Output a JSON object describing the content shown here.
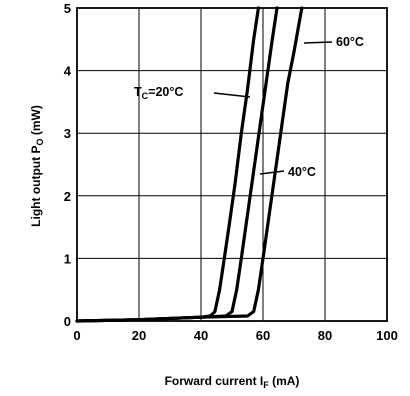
{
  "chart_data": {
    "type": "line",
    "title": "",
    "xlabel": "Forward current I",
    "xlabel_sub": "F",
    "xlabel_unit": " (mA)",
    "ylabel": "Light output P",
    "ylabel_sub": "O",
    "ylabel_unit": " (mW)",
    "xlim": [
      0,
      100
    ],
    "ylim": [
      0,
      5
    ],
    "x_ticks": [
      0,
      20,
      40,
      60,
      80,
      100
    ],
    "y_ticks": [
      0,
      1,
      2,
      3,
      4,
      5
    ],
    "grid": true,
    "legend": "none",
    "line_color": "#000000",
    "series": [
      {
        "name": "TC=20°C",
        "points": [
          [
            0,
            0.0
          ],
          [
            20,
            0.02
          ],
          [
            40,
            0.06
          ],
          [
            43,
            0.08
          ],
          [
            44.5,
            0.15
          ],
          [
            46,
            0.5
          ],
          [
            47.5,
            1.0
          ],
          [
            49,
            1.5
          ],
          [
            51,
            2.2
          ],
          [
            53,
            3.0
          ],
          [
            55,
            3.7
          ],
          [
            57,
            4.5
          ],
          [
            58.5,
            5.0
          ]
        ]
      },
      {
        "name": "40°C",
        "points": [
          [
            0,
            0.0
          ],
          [
            20,
            0.02
          ],
          [
            40,
            0.06
          ],
          [
            48,
            0.08
          ],
          [
            50,
            0.15
          ],
          [
            51.5,
            0.5
          ],
          [
            53,
            1.0
          ],
          [
            55,
            1.7
          ],
          [
            57,
            2.4
          ],
          [
            59,
            3.1
          ],
          [
            61,
            3.8
          ],
          [
            63,
            4.5
          ],
          [
            64.5,
            5.0
          ]
        ]
      },
      {
        "name": "60°C",
        "points": [
          [
            0,
            0.0
          ],
          [
            20,
            0.02
          ],
          [
            40,
            0.06
          ],
          [
            55,
            0.08
          ],
          [
            57,
            0.15
          ],
          [
            58.5,
            0.5
          ],
          [
            60,
            1.0
          ],
          [
            62,
            1.7
          ],
          [
            64,
            2.4
          ],
          [
            66,
            3.1
          ],
          [
            68,
            3.8
          ],
          [
            70,
            4.3
          ],
          [
            72.5,
            5.0
          ]
        ]
      }
    ],
    "annotations": [
      {
        "id": "tc20",
        "main": "T",
        "sub": "C",
        "rest": "=20°C"
      },
      {
        "id": "t40",
        "main": "40°C",
        "sub": "",
        "rest": ""
      },
      {
        "id": "t60",
        "main": "60°C",
        "sub": "",
        "rest": ""
      }
    ]
  }
}
